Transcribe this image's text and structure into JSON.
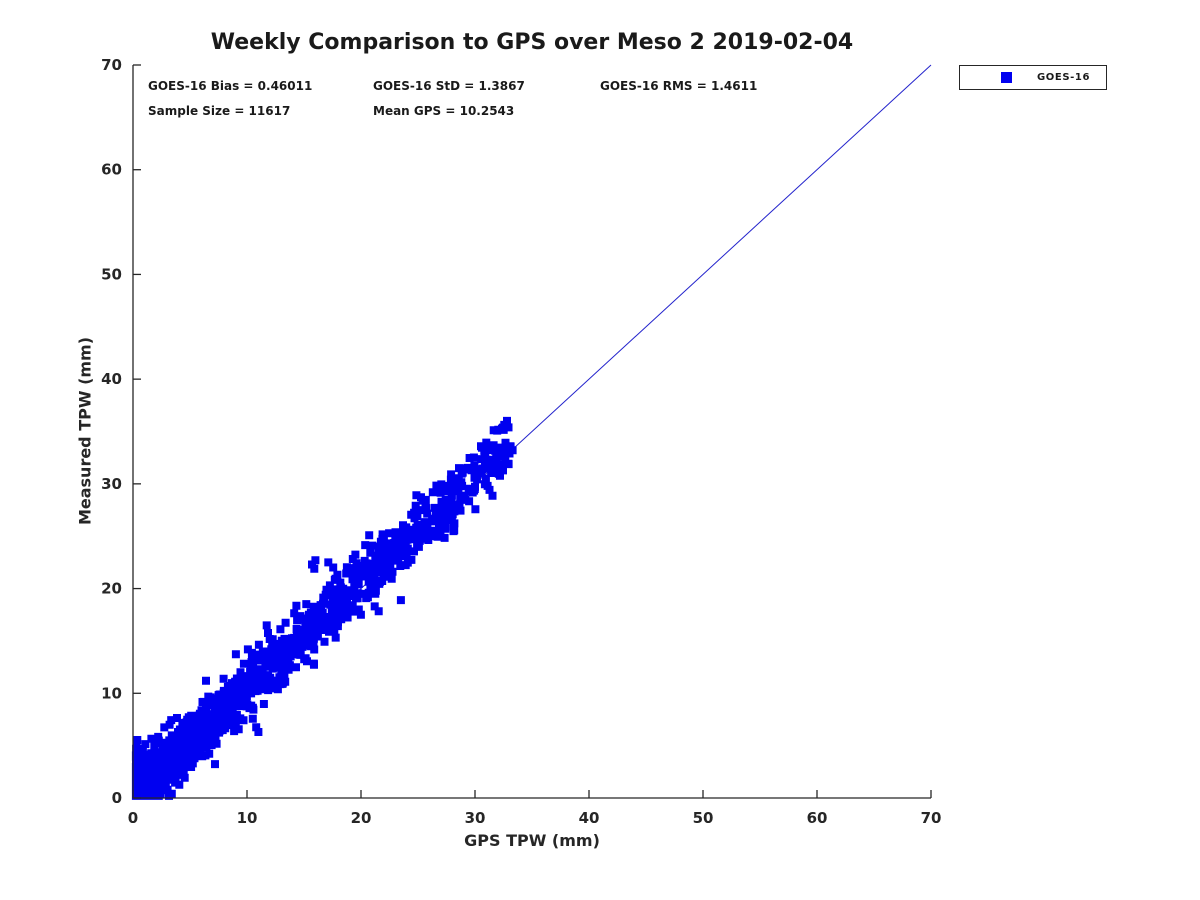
{
  "title": "Weekly Comparison to GPS over Meso 2 2019-02-04",
  "stats": {
    "bias_label": "GOES-16 Bias = 0.46011",
    "std_label": "GOES-16 StD = 1.3867",
    "rms_label": "GOES-16 RMS = 1.4611",
    "sample_label": "Sample Size = 11617",
    "mean_label": "Mean GPS = 10.2543"
  },
  "legend": {
    "entries": [
      {
        "label": "GOES-16",
        "marker": "filled-square",
        "marker_color": "#0000f0"
      }
    ]
  },
  "colors": {
    "marker_blue": "#0000f0",
    "line_blue": "#2323cc",
    "axis_color": "#262626",
    "text_color": "#1a1a1a",
    "background": "#ffffff"
  },
  "chart_data": {
    "type": "scatter",
    "title": "Weekly Comparison to GPS over Meso 2 2019-02-04",
    "xlabel": "GPS TPW (mm)",
    "ylabel": "Measured TPW (mm)",
    "xlim": [
      0,
      70
    ],
    "ylim": [
      0,
      70
    ],
    "xticks": [
      0,
      10,
      20,
      30,
      40,
      50,
      60,
      70
    ],
    "yticks": [
      0,
      10,
      20,
      30,
      40,
      50,
      60,
      70
    ],
    "grid": false,
    "legend_position": "outside-top-right",
    "reference_line": {
      "name": "identity-line",
      "from": [
        0,
        0
      ],
      "to": [
        70,
        70
      ],
      "color": "#2323cc",
      "width": 1
    },
    "series": [
      {
        "name": "GOES-16",
        "marker": "square",
        "marker_color": "#0000f0",
        "marker_size_px": 8,
        "stats": {
          "bias": 0.46011,
          "std": 1.3867,
          "rms": 1.4611,
          "sample_size": 11617,
          "mean_gps": 10.2543
        },
        "x_range_observed": [
          0.3,
          33.5
        ],
        "y_range_observed": [
          0.2,
          33.3
        ],
        "cloud_model": {
          "description": "Dense cloud of 11617 points along the 1:1 line from (0,0) to about (33.5,33.3); y = x + 0.46 with sd 1.39, denser at low TPW (mean GPS 10.25), clipped at y>=0.2",
          "n_points_actual": 11617,
          "n_points_rendered": 1750,
          "seed": 7,
          "x_min": 0.25,
          "x_span": 33.2,
          "x_exponent": 2.35,
          "bias": 0.46,
          "noise_std": 1.39,
          "y_clip_min": 0.2
        },
        "notable_points": [
          [
            16.0,
            22.7
          ],
          [
            15.7,
            22.3
          ],
          [
            15.9,
            21.9
          ],
          [
            23.5,
            18.9
          ],
          [
            21.2,
            18.3
          ],
          [
            11.0,
            6.3
          ],
          [
            6.4,
            11.2
          ],
          [
            27.9,
            30.9
          ],
          [
            28.6,
            31.5
          ],
          [
            29.7,
            31.3
          ],
          [
            30.9,
            32.5
          ],
          [
            31.9,
            33.0
          ],
          [
            32.8,
            33.2
          ],
          [
            33.3,
            33.2
          ],
          [
            25.4,
            28.4
          ],
          [
            26.3,
            29.2
          ],
          [
            24.8,
            27.9
          ],
          [
            2.1,
            0.3
          ],
          [
            3.4,
            0.4
          ],
          [
            1.1,
            0.3
          ]
        ]
      }
    ]
  }
}
